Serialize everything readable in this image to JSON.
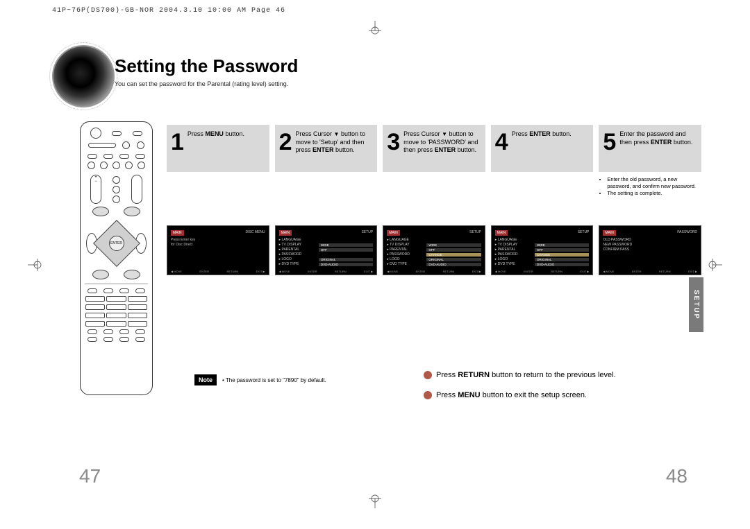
{
  "meta_header": "41P~76P(DS700)-GB-NOR  2004.3.10  10:00 AM  Page 46",
  "title": "Setting the Password",
  "subtitle": "You can set the password for the Parental (rating level) setting.",
  "side_tab": "SETUP",
  "steps": [
    {
      "num": "1",
      "html": "Press <b>MENU</b> button."
    },
    {
      "num": "2",
      "html": "Press Cursor <span class='arrow-down'>▼</span> button to move to 'Setup' and then press <b>ENTER</b> button."
    },
    {
      "num": "3",
      "html": "Press Cursor <span class='arrow-down'>▼</span> button to move to 'PASSWORD' and then press <b>ENTER</b> button."
    },
    {
      "num": "4",
      "html": "Press <b>ENTER</b> button."
    },
    {
      "num": "5",
      "html": "Enter the password and then press <b>ENTER</b> button."
    }
  ],
  "step5_extra": [
    "Enter the old password, a new password, and confirm new password.",
    "The setting is complete."
  ],
  "note_label": "Note",
  "note_text": "• The password is set to \"7890\" by default.",
  "nav_line1": "Press <b>RETURN</b> button to return to the previous level.",
  "nav_line2": "Press <b>MENU</b> button to exit the setup screen.",
  "page_left": "47",
  "page_right": "48",
  "tv_screens": {
    "s1": {
      "left_tag": "MAIN",
      "right_tag": "DISC MENU",
      "rows": [
        {
          "label": "",
          "val": "Press Enter key"
        },
        {
          "label": "",
          "val": "for Disc Direct"
        }
      ]
    },
    "s2": {
      "left_tag": "MAIN",
      "right_tag": "SETUP",
      "rows": [
        {
          "label": "▸ LANGUAGE",
          "val": ""
        },
        {
          "label": "▸ TV DISPLAY",
          "val": "WIDE"
        },
        {
          "label": "▸ PARENTAL",
          "val": "OFF"
        },
        {
          "label": "▸ PASSWORD",
          "val": "",
          "hl": false
        },
        {
          "label": "▸ LOGO",
          "val": "ORIGINAL"
        },
        {
          "label": "▸ DVD TYPE",
          "val": "DVD-AUDIO"
        }
      ]
    },
    "s3": {
      "left_tag": "MAIN",
      "right_tag": "SETUP",
      "rows": [
        {
          "label": "▸ LANGUAGE",
          "val": ""
        },
        {
          "label": "▸ TV DISPLAY",
          "val": "WIDE"
        },
        {
          "label": "▸ PARENTAL",
          "val": "OFF"
        },
        {
          "label": "▸ PASSWORD",
          "val": "CHANGE",
          "hl": true
        },
        {
          "label": "▸ LOGO",
          "val": "ORIGINAL"
        },
        {
          "label": "▸ DVD TYPE",
          "val": "DVD-AUDIO"
        }
      ]
    },
    "s4": {
      "left_tag": "MAIN",
      "right_tag": "SETUP",
      "rows": [
        {
          "label": "▸ LANGUAGE",
          "val": ""
        },
        {
          "label": "▸ TV DISPLAY",
          "val": "WIDE"
        },
        {
          "label": "▸ PARENTAL",
          "val": "OFF"
        },
        {
          "label": "▸ PASSWORD",
          "val": "CHANGE",
          "hl": true
        },
        {
          "label": "▸ LOGO",
          "val": "ORIGINAL"
        },
        {
          "label": "▸ DVD TYPE",
          "val": "DVD-AUDIO"
        }
      ]
    },
    "s5": {
      "left_tag": "MAIN",
      "right_tag": "PASSWORD",
      "rows": [
        {
          "label": "OLD PASSWORD",
          "val": ""
        },
        {
          "label": "NEW PASSWORD",
          "val": ""
        },
        {
          "label": "CONFIRM PASS",
          "val": ""
        }
      ]
    },
    "footer": [
      "◀ MOVE",
      "ENTER",
      "RETURN",
      "EXIT ▶"
    ]
  },
  "colors": {
    "step_bg": "#d9d9d9",
    "highlight": "#a8935a",
    "red_tag": "#a03030",
    "page_num": "#8a8a8a",
    "nav_dot": "#b0594a",
    "tab_bg": "#7a7a7a"
  }
}
